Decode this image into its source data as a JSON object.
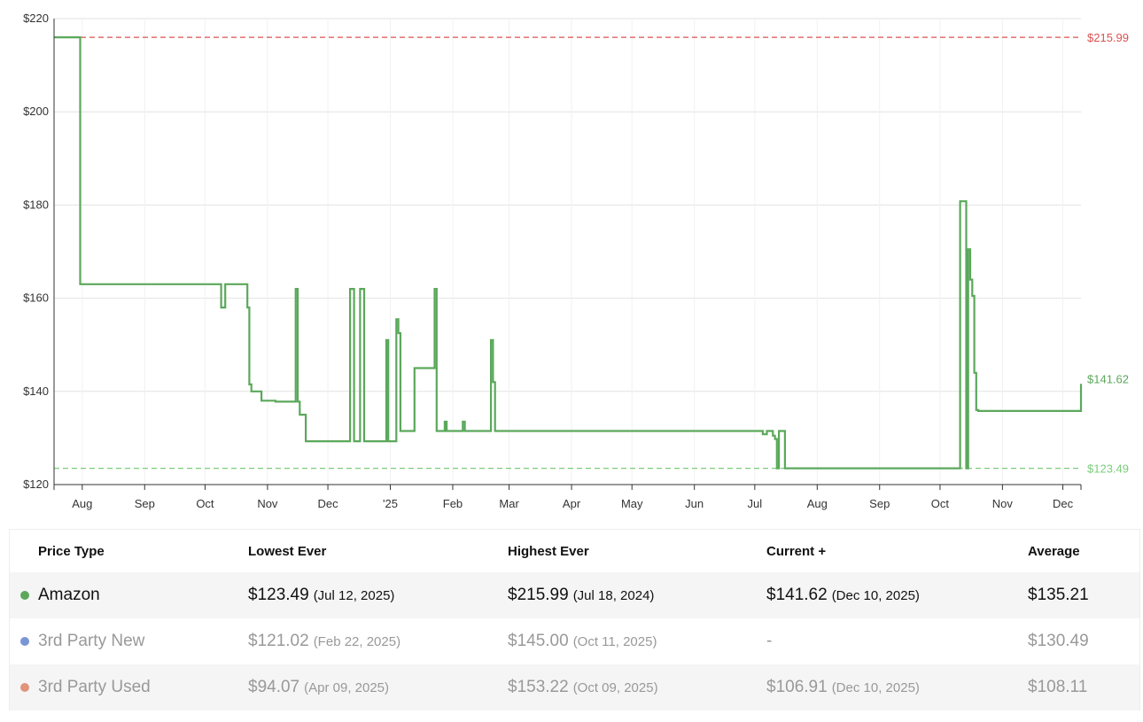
{
  "chart_data": {
    "type": "line",
    "title": "",
    "xlabel": "",
    "ylabel": "",
    "xlim": [
      "2024-07-18",
      "2025-12-10"
    ],
    "ylim": [
      120,
      220
    ],
    "y_ticks": [
      {
        "value": 120,
        "label": "$120"
      },
      {
        "value": 140,
        "label": "$140"
      },
      {
        "value": 160,
        "label": "$160"
      },
      {
        "value": 180,
        "label": "$180"
      },
      {
        "value": 200,
        "label": "$200"
      },
      {
        "value": 220,
        "label": "$220"
      }
    ],
    "x_ticks": [
      {
        "date": "2024-08-01",
        "label": "Aug"
      },
      {
        "date": "2024-09-01",
        "label": "Sep"
      },
      {
        "date": "2024-10-01",
        "label": "Oct"
      },
      {
        "date": "2024-11-01",
        "label": "Nov"
      },
      {
        "date": "2024-12-01",
        "label": "Dec"
      },
      {
        "date": "2025-01-01",
        "label": "'25"
      },
      {
        "date": "2025-02-01",
        "label": "Feb"
      },
      {
        "date": "2025-03-01",
        "label": "Mar"
      },
      {
        "date": "2025-04-01",
        "label": "Apr"
      },
      {
        "date": "2025-05-01",
        "label": "May"
      },
      {
        "date": "2025-06-01",
        "label": "Jun"
      },
      {
        "date": "2025-07-01",
        "label": "Jul"
      },
      {
        "date": "2025-08-01",
        "label": "Aug"
      },
      {
        "date": "2025-09-01",
        "label": "Sep"
      },
      {
        "date": "2025-10-01",
        "label": "Oct"
      },
      {
        "date": "2025-11-01",
        "label": "Nov"
      },
      {
        "date": "2025-12-01",
        "label": "Dec"
      }
    ],
    "grid": true,
    "reference_lines": [
      {
        "value": 215.99,
        "label": "$215.99",
        "color": "#d9534f"
      },
      {
        "value": 123.49,
        "label": "$123.49",
        "color": "#7ccd7c"
      }
    ],
    "end_label": {
      "value": 141.62,
      "label": "$141.62",
      "color": "#5ba85b"
    },
    "series": [
      {
        "color": "#5ba85b",
        "step": true,
        "points": [
          [
            "2024-07-18",
            215.99
          ],
          [
            "2024-07-31",
            163.0
          ],
          [
            "2024-10-09",
            158.0
          ],
          [
            "2024-10-11",
            163.0
          ],
          [
            "2024-10-22",
            158.0
          ],
          [
            "2024-10-23",
            141.5
          ],
          [
            "2024-10-24",
            140.0
          ],
          [
            "2024-10-29",
            138.0
          ],
          [
            "2024-11-05",
            137.8
          ],
          [
            "2024-11-15",
            162.0
          ],
          [
            "2024-11-16",
            137.8
          ],
          [
            "2024-11-17",
            135.0
          ],
          [
            "2024-11-20",
            129.3
          ],
          [
            "2024-12-12",
            162.0
          ],
          [
            "2024-12-14",
            129.3
          ],
          [
            "2024-12-17",
            162.0
          ],
          [
            "2024-12-19",
            129.3
          ],
          [
            "2024-12-30",
            151.0
          ],
          [
            "2024-12-31",
            129.3
          ],
          [
            "2025-01-04",
            155.5
          ],
          [
            "2025-01-05",
            152.5
          ],
          [
            "2025-01-06",
            131.5
          ],
          [
            "2025-01-13",
            145.0
          ],
          [
            "2025-01-23",
            162.0
          ],
          [
            "2025-01-24",
            131.5
          ],
          [
            "2025-01-28",
            133.5
          ],
          [
            "2025-01-29",
            131.5
          ],
          [
            "2025-02-06",
            133.5
          ],
          [
            "2025-02-07",
            131.5
          ],
          [
            "2025-02-20",
            151.0
          ],
          [
            "2025-02-21",
            142.0
          ],
          [
            "2025-02-22",
            131.5
          ],
          [
            "2025-07-05",
            130.8
          ],
          [
            "2025-07-07",
            131.5
          ],
          [
            "2025-07-10",
            130.5
          ],
          [
            "2025-07-11",
            129.8
          ],
          [
            "2025-07-12",
            123.49
          ],
          [
            "2025-07-13",
            131.5
          ],
          [
            "2025-07-16",
            123.49
          ],
          [
            "2025-10-11",
            180.8
          ],
          [
            "2025-10-14",
            123.49
          ],
          [
            "2025-10-15",
            170.5
          ],
          [
            "2025-10-16",
            164.0
          ],
          [
            "2025-10-17",
            160.5
          ],
          [
            "2025-10-18",
            144.0
          ],
          [
            "2025-10-19",
            136.0
          ],
          [
            "2025-10-20",
            135.8
          ],
          [
            "2025-12-10",
            141.62
          ]
        ]
      }
    ]
  },
  "table": {
    "headers": [
      "Price Type",
      "Lowest Ever",
      "Highest Ever",
      "Current +",
      "Average"
    ],
    "rows": [
      {
        "name": "Amazon",
        "color": "#5ba85b",
        "lowest": "$123.49",
        "lowest_date": "(Jul 12, 2025)",
        "highest": "$215.99",
        "highest_date": "(Jul 18, 2024)",
        "current": "$141.62",
        "current_date": "(Dec 10, 2025)",
        "average": "$135.21"
      },
      {
        "name": "3rd Party New",
        "color": "#7a95d6",
        "lowest": "$121.02",
        "lowest_date": "(Feb 22, 2025)",
        "highest": "$145.00",
        "highest_date": "(Oct 11, 2025)",
        "current": "-",
        "current_date": "",
        "average": "$130.49"
      },
      {
        "name": "3rd Party Used",
        "color": "#e0947a",
        "lowest": "$94.07",
        "lowest_date": "(Apr 09, 2025)",
        "highest": "$153.22",
        "highest_date": "(Oct 09, 2025)",
        "current": "$106.91",
        "current_date": "(Dec 10, 2025)",
        "average": "$108.11"
      }
    ]
  }
}
